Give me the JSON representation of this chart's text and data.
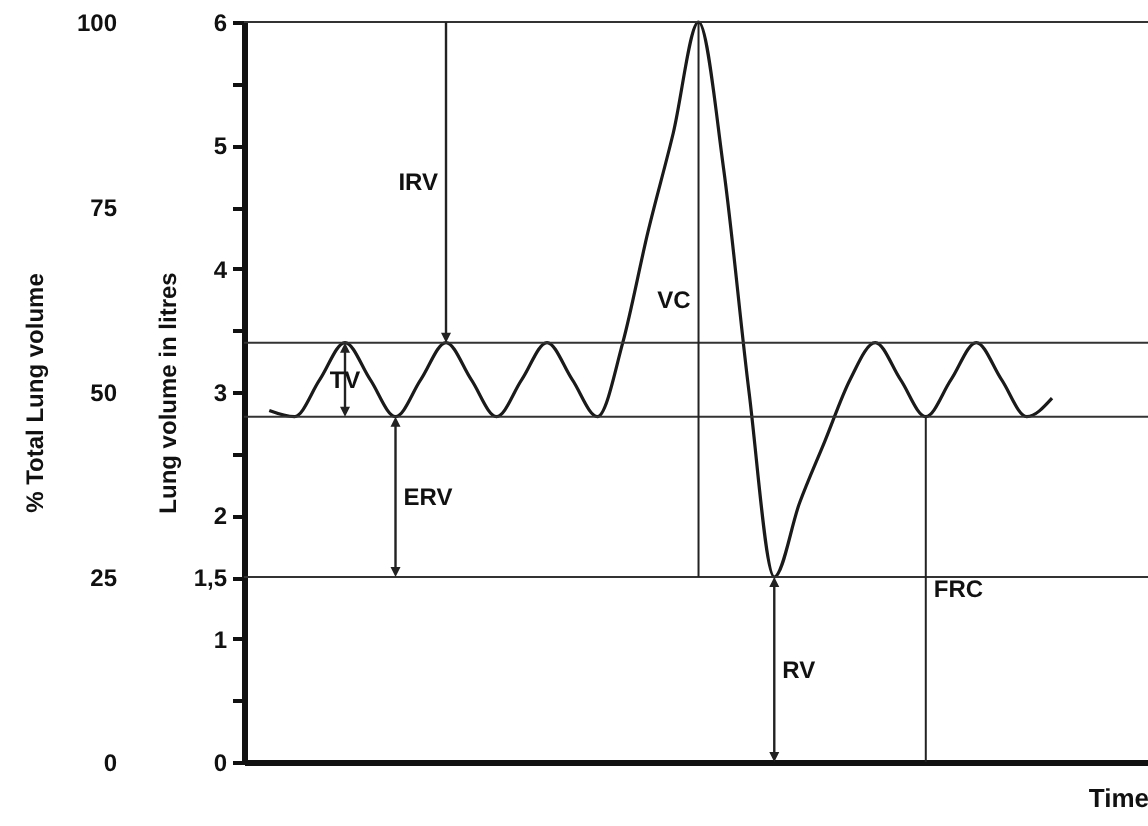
{
  "chart_data": {
    "type": "line",
    "xlabel": "Time",
    "ylabel": "Lung volume in litres",
    "y2label": "% Total Lung volume",
    "categories": [
      null,
      null,
      null,
      null,
      null,
      null,
      null,
      null,
      null,
      null,
      null,
      null,
      null,
      null,
      null,
      null,
      null,
      null,
      null,
      null,
      null,
      null,
      null,
      null,
      null,
      null,
      null,
      null,
      null,
      null,
      null,
      null
    ],
    "series": [
      {
        "color": "#1a1a1a",
        "values": [
          2.85,
          2.8,
          3.1,
          3.4,
          3.1,
          2.8,
          3.1,
          3.4,
          3.1,
          2.8,
          3.1,
          3.4,
          3.1,
          2.8,
          3.4,
          4.3,
          5.1,
          6.0,
          4.8,
          3.0,
          1.5,
          2.1,
          2.6,
          3.1,
          3.4,
          3.1,
          2.8,
          3.1,
          3.4,
          3.1,
          2.8,
          2.95
        ]
      }
    ],
    "ylim": [
      0,
      6
    ],
    "yticks": [
      0,
      {
        "value": 0.5,
        "label": null
      },
      1,
      {
        "value": 1.5,
        "label": "1,5"
      },
      2,
      {
        "value": 2.5,
        "label": null
      },
      3,
      {
        "value": 3.5,
        "label": null
      },
      4,
      {
        "value": 4.5,
        "label": null
      },
      5,
      {
        "value": 5.5,
        "label": null
      },
      6
    ],
    "y2lim": [
      0,
      100
    ],
    "y2ticks": [
      0,
      25,
      50,
      75,
      100
    ],
    "ref_lines": [
      {
        "axis": "y",
        "value": 6
      },
      {
        "axis": "y",
        "value": 3.4
      },
      {
        "axis": "y",
        "value": 2.8
      },
      {
        "axis": "y",
        "value": 1.5
      }
    ],
    "annotations": [
      "IRV",
      "TV",
      "ERV",
      "VC",
      "RV",
      "FRC"
    ],
    "grid": false,
    "marker": "none",
    "line_style": "solid"
  }
}
